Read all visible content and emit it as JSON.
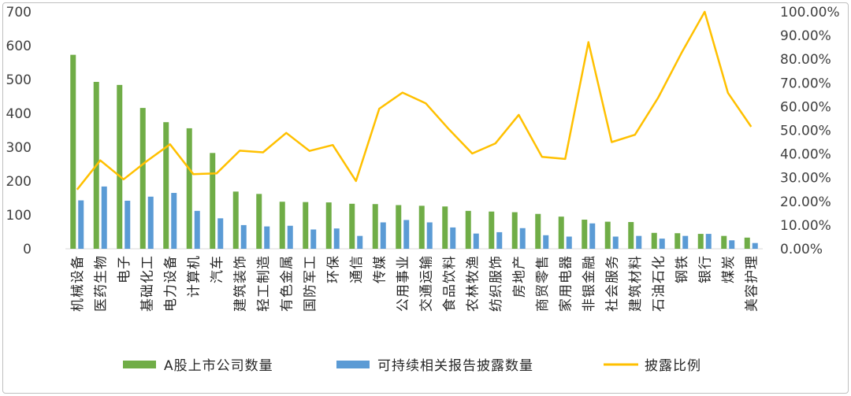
{
  "chart_data": {
    "type": "bar",
    "title": "",
    "xlabel": "",
    "ylabel": "",
    "ylim": [
      0,
      700
    ],
    "y2lim": [
      0,
      1.0
    ],
    "y_ticks": [
      "0",
      "100",
      "200",
      "300",
      "400",
      "500",
      "600",
      "700"
    ],
    "y2_ticks": [
      "0.00%",
      "10.00%",
      "20.00%",
      "30.00%",
      "40.00%",
      "50.00%",
      "60.00%",
      "70.00%",
      "80.00%",
      "90.00%",
      "100.00%"
    ],
    "grid": false,
    "legend_position": "bottom",
    "categories": [
      "机械设备",
      "医药生物",
      "电子",
      "基础化工",
      "电力设备",
      "计算机",
      "汽车",
      "建筑装饰",
      "轻工制造",
      "有色金属",
      "国防军工",
      "环保",
      "通信",
      "传媒",
      "公用事业",
      "交通运输",
      "食品饮料",
      "农林牧渔",
      "纺织服饰",
      "房地产",
      "商贸零售",
      "家用电器",
      "非银金融",
      "社会服务",
      "建筑材料",
      "石油石化",
      "钢铁",
      "银行",
      "煤炭",
      "美容护理"
    ],
    "series": [
      {
        "name": "A股上市公司数量",
        "type": "bar",
        "axis": "left",
        "color": "#70ad47",
        "values": [
          573,
          493,
          484,
          416,
          374,
          356,
          283,
          169,
          162,
          139,
          138,
          137,
          133,
          132,
          129,
          127,
          125,
          112,
          110,
          108,
          103,
          95,
          86,
          80,
          79,
          47,
          46,
          44,
          38,
          33
        ]
      },
      {
        "name": "可持续相关报告披露数量",
        "type": "bar",
        "axis": "left",
        "color": "#5b9bd5",
        "values": [
          143,
          184,
          142,
          154,
          165,
          112,
          90,
          70,
          66,
          68,
          57,
          60,
          38,
          78,
          85,
          78,
          63,
          45,
          49,
          61,
          40,
          36,
          75,
          36,
          38,
          30,
          38,
          44,
          25,
          17
        ]
      },
      {
        "name": "披露比例",
        "type": "line",
        "axis": "right",
        "color": "#ffc000",
        "values": [
          0.25,
          0.373,
          0.293,
          0.37,
          0.441,
          0.315,
          0.318,
          0.414,
          0.407,
          0.489,
          0.413,
          0.438,
          0.286,
          0.591,
          0.659,
          0.614,
          0.504,
          0.402,
          0.445,
          0.565,
          0.388,
          0.379,
          0.872,
          0.45,
          0.481,
          0.638,
          0.826,
          1.0,
          0.658,
          0.515
        ]
      }
    ]
  }
}
